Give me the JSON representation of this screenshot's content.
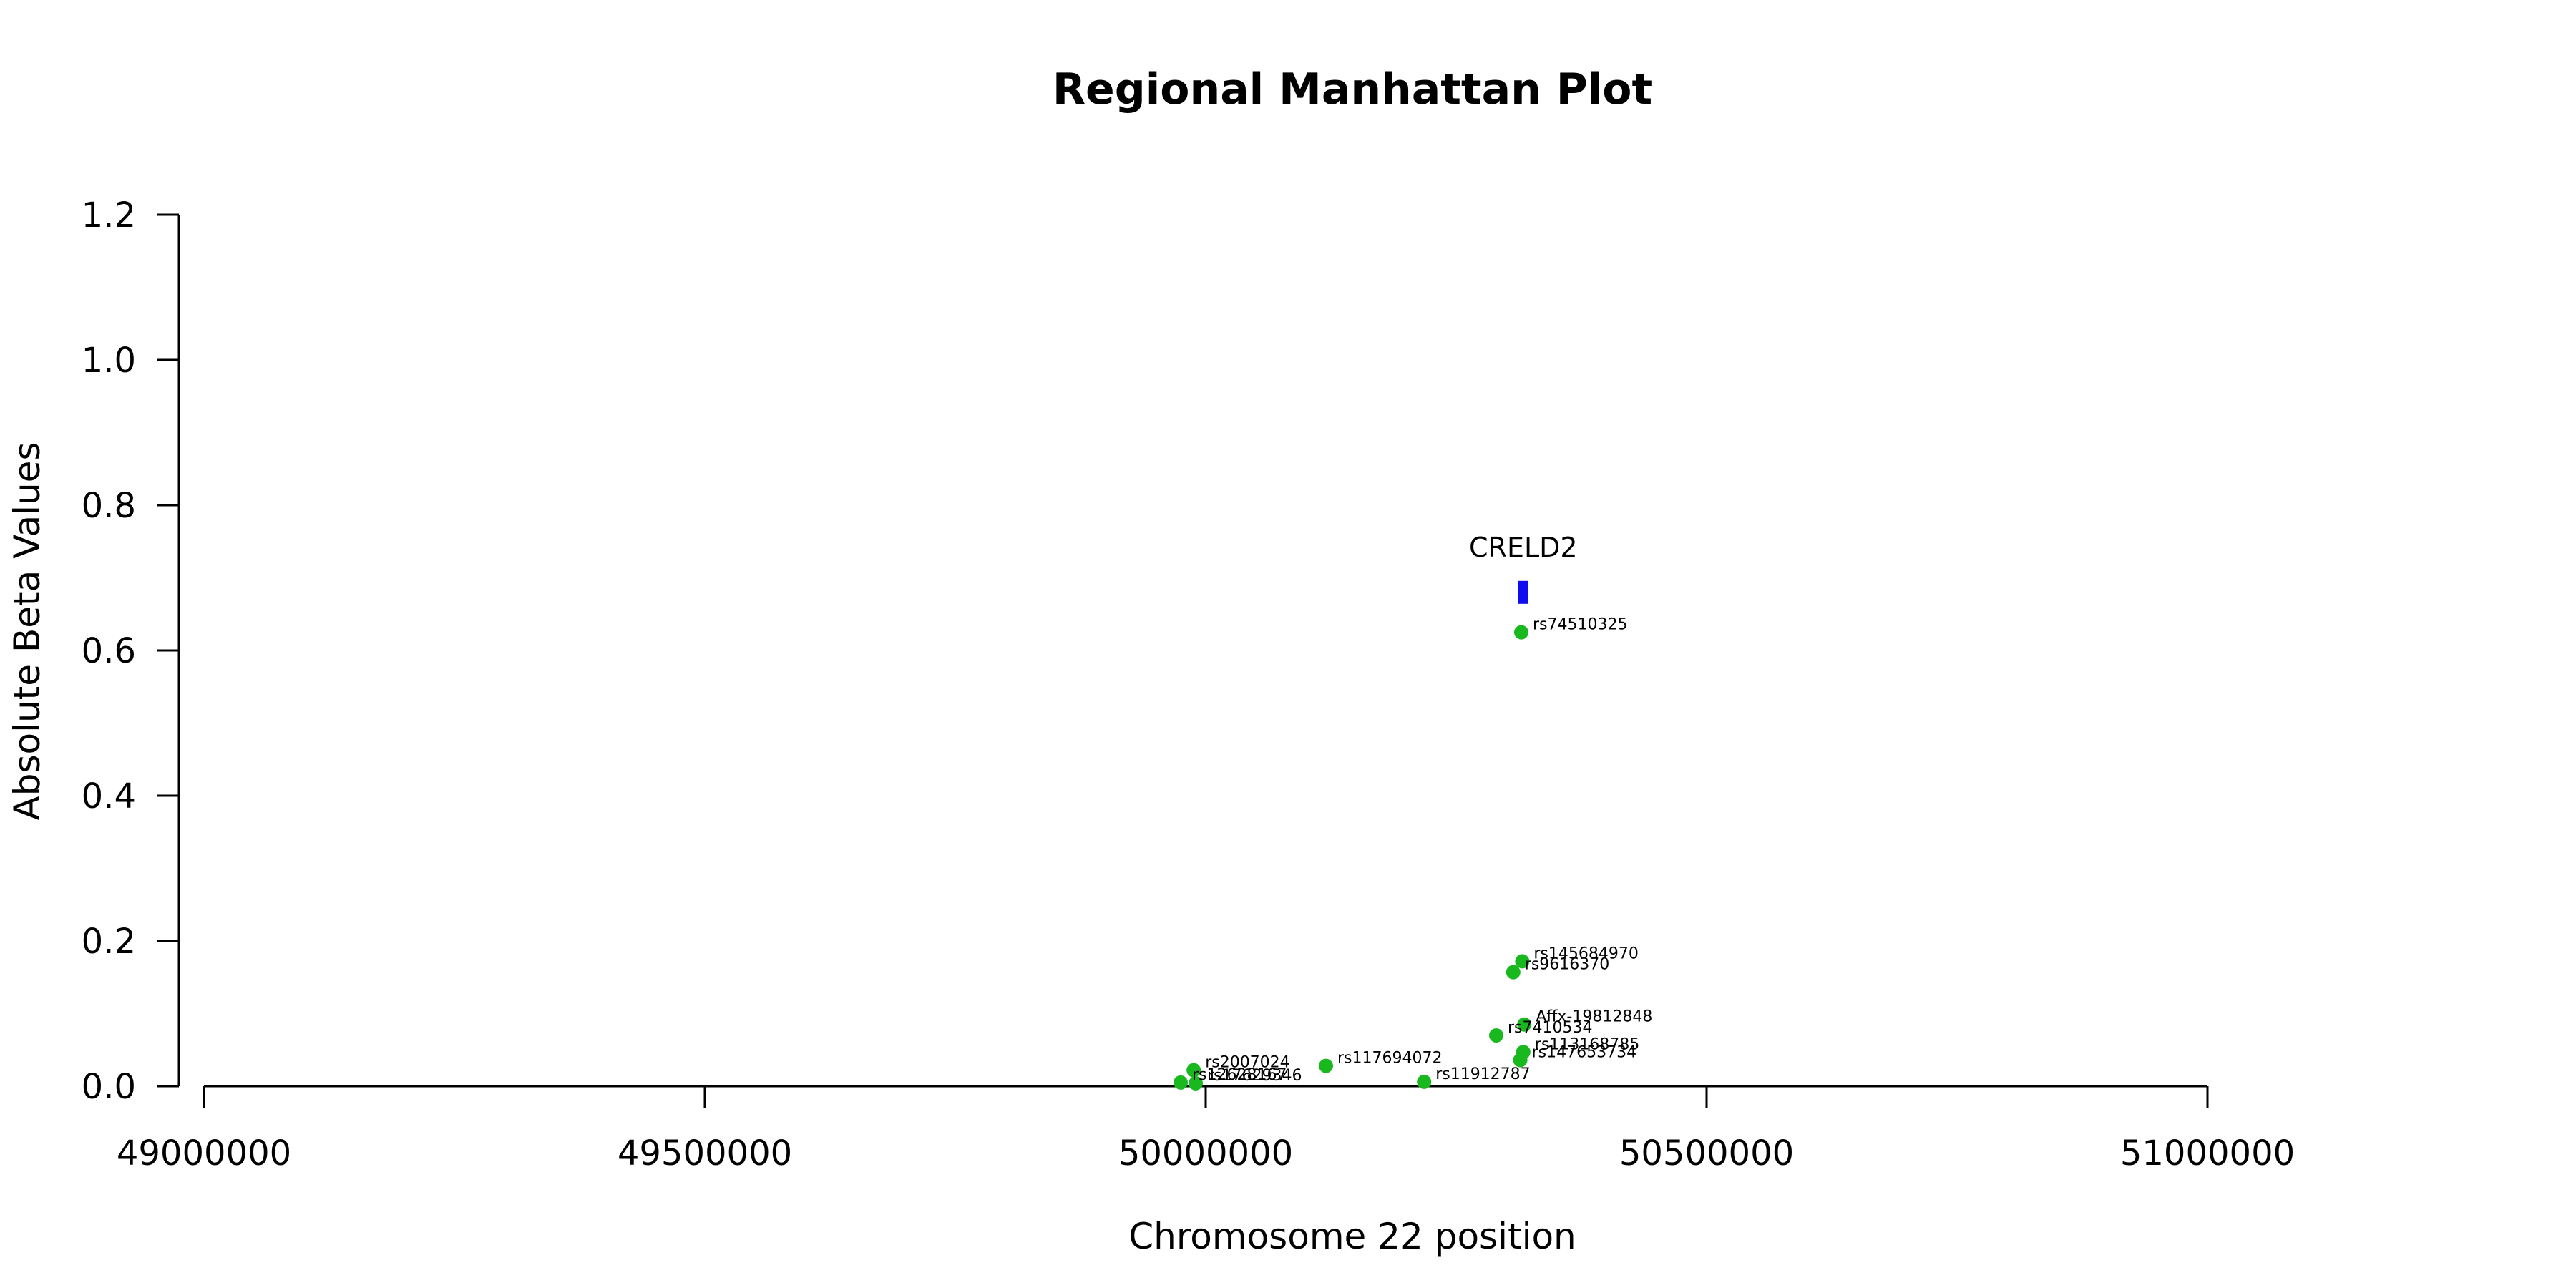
{
  "chart_data": {
    "type": "scatter",
    "title": "Regional Manhattan Plot",
    "xlabel": "Chromosome 22 position",
    "ylabel": "Absolute Beta Values",
    "xlim": [
      49000000,
      51000000
    ],
    "ylim": [
      0,
      1.2
    ],
    "x_ticks": [
      49000000,
      49500000,
      50000000,
      50500000,
      51000000
    ],
    "x_tick_labels": [
      "49000000",
      "49500000",
      "50000000",
      "50500000",
      "51000000"
    ],
    "y_ticks": [
      0,
      0.2,
      0.4,
      0.6,
      0.8,
      1.0,
      1.2
    ],
    "y_tick_labels": [
      "0.0",
      "0.2",
      "0.4",
      "0.6",
      "0.8",
      "1.0",
      "1.2"
    ],
    "grid": false,
    "point_color": "#19b81f",
    "gene_color": "#0d0df0",
    "points": [
      {
        "label": "rs74510325",
        "x": 50315000,
        "y": 0.625
      },
      {
        "label": "rs145684970",
        "x": 50316000,
        "y": 0.172
      },
      {
        "label": "rs9616370",
        "x": 50307000,
        "y": 0.157
      },
      {
        "label": "Affx-19812848",
        "x": 50318000,
        "y": 0.085
      },
      {
        "label": "rs7410534",
        "x": 50290000,
        "y": 0.07
      },
      {
        "label": "rs113168785",
        "x": 50317000,
        "y": 0.047
      },
      {
        "label": "rs147653734",
        "x": 50314000,
        "y": 0.036
      },
      {
        "label": "rs117694072",
        "x": 50120000,
        "y": 0.028
      },
      {
        "label": "rs2007024",
        "x": 49988000,
        "y": 0.022
      },
      {
        "label": "rs11912787",
        "x": 50218000,
        "y": 0.006
      },
      {
        "label": "rs17629346",
        "x": 49990000,
        "y": 0.004
      },
      {
        "label": "rs12628167",
        "x": 49975000,
        "y": 0.005
      }
    ],
    "genes": [
      {
        "name": "CRELD2",
        "start": 50312000,
        "end": 50322000,
        "y": 0.68
      }
    ]
  }
}
